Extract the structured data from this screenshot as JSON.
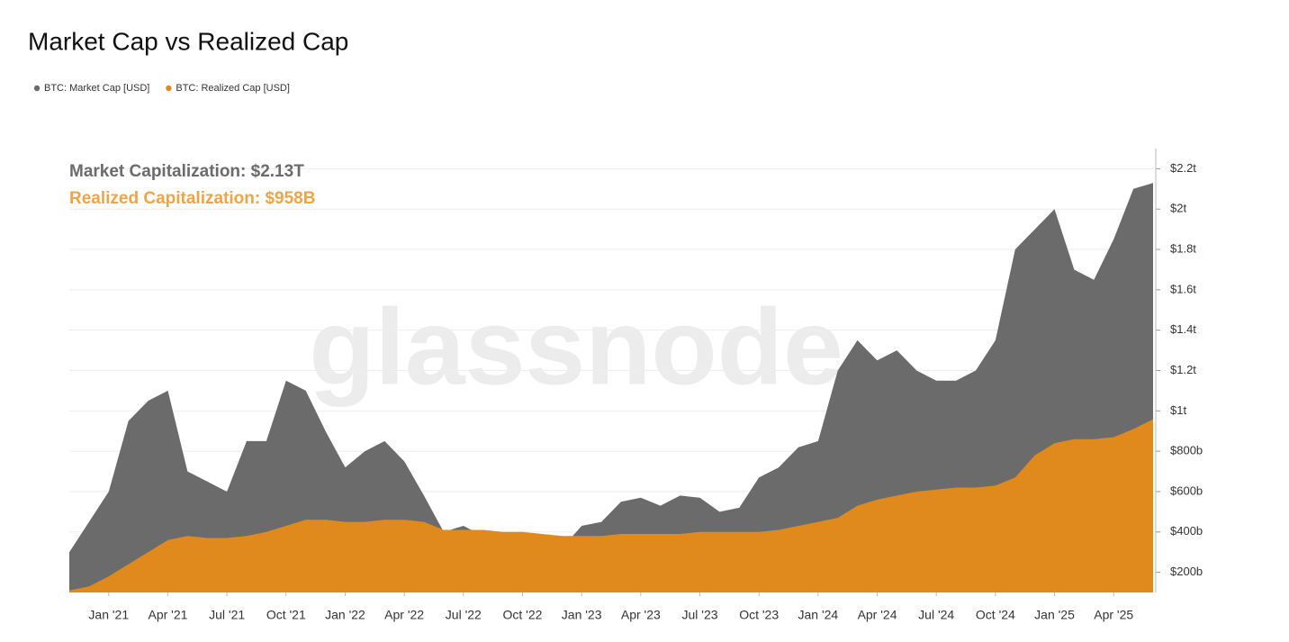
{
  "chart_data": {
    "type": "area",
    "title": "Market Cap vs Realized Cap",
    "annotations": [
      "Market Capitalization: $2.13T",
      "Realized Capitalization: $958B"
    ],
    "watermark": "glassnode",
    "legend": "top-left",
    "grid": true,
    "x": [
      "2020-11",
      "2020-12",
      "2021-01",
      "2021-02",
      "2021-03",
      "2021-04",
      "2021-05",
      "2021-06",
      "2021-07",
      "2021-08",
      "2021-09",
      "2021-10",
      "2021-11",
      "2021-12",
      "2022-01",
      "2022-02",
      "2022-03",
      "2022-04",
      "2022-05",
      "2022-06",
      "2022-07",
      "2022-08",
      "2022-09",
      "2022-10",
      "2022-11",
      "2022-12",
      "2023-01",
      "2023-02",
      "2023-03",
      "2023-04",
      "2023-05",
      "2023-06",
      "2023-07",
      "2023-08",
      "2023-09",
      "2023-10",
      "2023-11",
      "2023-12",
      "2024-01",
      "2024-02",
      "2024-03",
      "2024-04",
      "2024-05",
      "2024-06",
      "2024-07",
      "2024-08",
      "2024-09",
      "2024-10",
      "2024-11",
      "2024-12",
      "2025-01",
      "2025-02",
      "2025-03",
      "2025-04",
      "2025-05",
      "2025-06"
    ],
    "xlim": [
      "2020-11",
      "2025-06"
    ],
    "xticks": [
      {
        "value": "2021-01",
        "label": "Jan '21"
      },
      {
        "value": "2021-04",
        "label": "Apr '21"
      },
      {
        "value": "2021-07",
        "label": "Jul '21"
      },
      {
        "value": "2021-10",
        "label": "Oct '21"
      },
      {
        "value": "2022-01",
        "label": "Jan '22"
      },
      {
        "value": "2022-04",
        "label": "Apr '22"
      },
      {
        "value": "2022-07",
        "label": "Jul '22"
      },
      {
        "value": "2022-10",
        "label": "Oct '22"
      },
      {
        "value": "2023-01",
        "label": "Jan '23"
      },
      {
        "value": "2023-04",
        "label": "Apr '23"
      },
      {
        "value": "2023-07",
        "label": "Jul '23"
      },
      {
        "value": "2023-10",
        "label": "Oct '23"
      },
      {
        "value": "2024-01",
        "label": "Jan '24"
      },
      {
        "value": "2024-04",
        "label": "Apr '24"
      },
      {
        "value": "2024-07",
        "label": "Jul '24"
      },
      {
        "value": "2024-10",
        "label": "Oct '24"
      },
      {
        "value": "2025-01",
        "label": "Jan '25"
      },
      {
        "value": "2025-04",
        "label": "Apr '25"
      }
    ],
    "ylim": [
      100000000000.0,
      2300000000000.0
    ],
    "yticks": [
      {
        "value": 200000000000.0,
        "label": "$200b"
      },
      {
        "value": 400000000000.0,
        "label": "$400b"
      },
      {
        "value": 600000000000.0,
        "label": "$600b"
      },
      {
        "value": 800000000000.0,
        "label": "$800b"
      },
      {
        "value": 1000000000000.0,
        "label": "$1t"
      },
      {
        "value": 1200000000000.0,
        "label": "$1.2t"
      },
      {
        "value": 1400000000000.0,
        "label": "$1.4t"
      },
      {
        "value": 1600000000000.0,
        "label": "$1.6t"
      },
      {
        "value": 1800000000000.0,
        "label": "$1.8t"
      },
      {
        "value": 2000000000000.0,
        "label": "$2t"
      },
      {
        "value": 2200000000000.0,
        "label": "$2.2t"
      }
    ],
    "series": [
      {
        "name": "BTC: Market Cap [USD]",
        "color": "#6b6b6b",
        "values": [
          300000000000.0,
          450000000000.0,
          600000000000.0,
          950000000000.0,
          1050000000000.0,
          1100000000000.0,
          700000000000.0,
          650000000000.0,
          600000000000.0,
          850000000000.0,
          850000000000.0,
          1150000000000.0,
          1100000000000.0,
          900000000000.0,
          720000000000.0,
          800000000000.0,
          850000000000.0,
          750000000000.0,
          580000000000.0,
          400000000000.0,
          430000000000.0,
          380000000000.0,
          370000000000.0,
          390000000000.0,
          320000000000.0,
          320000000000.0,
          430000000000.0,
          450000000000.0,
          550000000000.0,
          570000000000.0,
          530000000000.0,
          580000000000.0,
          570000000000.0,
          500000000000.0,
          520000000000.0,
          670000000000.0,
          720000000000.0,
          820000000000.0,
          850000000000.0,
          1200000000000.0,
          1350000000000.0,
          1250000000000.0,
          1300000000000.0,
          1200000000000.0,
          1150000000000.0,
          1150000000000.0,
          1200000000000.0,
          1350000000000.0,
          1800000000000.0,
          1900000000000.0,
          2000000000000.0,
          1700000000000.0,
          1650000000000.0,
          1850000000000.0,
          2100000000000.0,
          2130000000000.0
        ]
      },
      {
        "name": "BTC: Realized Cap [USD]",
        "color": "#e08a1e",
        "values": [
          110000000000.0,
          130000000000.0,
          180000000000.0,
          240000000000.0,
          300000000000.0,
          360000000000.0,
          380000000000.0,
          370000000000.0,
          370000000000.0,
          380000000000.0,
          400000000000.0,
          430000000000.0,
          460000000000.0,
          460000000000.0,
          450000000000.0,
          450000000000.0,
          460000000000.0,
          460000000000.0,
          450000000000.0,
          410000000000.0,
          410000000000.0,
          410000000000.0,
          400000000000.0,
          400000000000.0,
          390000000000.0,
          380000000000.0,
          380000000000.0,
          380000000000.0,
          390000000000.0,
          390000000000.0,
          390000000000.0,
          390000000000.0,
          400000000000.0,
          400000000000.0,
          400000000000.0,
          400000000000.0,
          410000000000.0,
          430000000000.0,
          450000000000.0,
          470000000000.0,
          530000000000.0,
          560000000000.0,
          580000000000.0,
          600000000000.0,
          610000000000.0,
          620000000000.0,
          620000000000.0,
          630000000000.0,
          670000000000.0,
          780000000000.0,
          840000000000.0,
          860000000000.0,
          860000000000.0,
          870000000000.0,
          910000000000.0,
          958000000000.0
        ]
      }
    ]
  }
}
